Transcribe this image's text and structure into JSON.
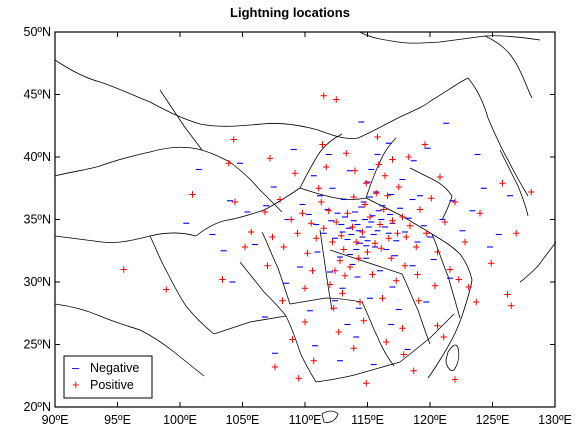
{
  "chart_data": {
    "type": "scatter",
    "title": "Lightning locations",
    "xlabel": "",
    "ylabel": "",
    "xlim": [
      90,
      130
    ],
    "ylim": [
      20,
      50
    ],
    "x_ticks": [
      {
        "value": 90,
        "label": "90ºE"
      },
      {
        "value": 95,
        "label": "95ºE"
      },
      {
        "value": 100,
        "label": "100ºE"
      },
      {
        "value": 105,
        "label": "105ºE"
      },
      {
        "value": 110,
        "label": "110ºE"
      },
      {
        "value": 115,
        "label": "115ºE"
      },
      {
        "value": 120,
        "label": "120ºE"
      },
      {
        "value": 125,
        "label": "125ºE"
      },
      {
        "value": 130,
        "label": "130ºE"
      }
    ],
    "y_ticks": [
      {
        "value": 20,
        "label": "20ºN"
      },
      {
        "value": 25,
        "label": "25ºN"
      },
      {
        "value": 30,
        "label": "30ºN"
      },
      {
        "value": 35,
        "label": "35ºN"
      },
      {
        "value": 40,
        "label": "40ºN"
      },
      {
        "value": 45,
        "label": "45ºN"
      },
      {
        "value": 50,
        "label": "50ºN"
      }
    ],
    "grid": false,
    "legend_position": "bottom-left",
    "series": [
      {
        "name": "Negative",
        "marker": "minus",
        "color": "#0000ff",
        "points": [
          [
            115.1,
            34.4
          ],
          [
            114.8,
            35.0
          ],
          [
            114.3,
            34.1
          ],
          [
            115.4,
            35.3
          ],
          [
            113.9,
            34.9
          ],
          [
            114.6,
            33.6
          ],
          [
            115.8,
            34.1
          ],
          [
            114.0,
            35.6
          ],
          [
            115.0,
            33.3
          ],
          [
            113.5,
            34.3
          ],
          [
            116.1,
            35.0
          ],
          [
            114.5,
            36.0
          ],
          [
            115.5,
            33.8
          ],
          [
            113.2,
            35.2
          ],
          [
            116.4,
            34.4
          ],
          [
            114.9,
            32.9
          ],
          [
            113.7,
            33.8
          ],
          [
            115.9,
            35.7
          ],
          [
            114.2,
            34.6
          ],
          [
            115.3,
            34.8
          ],
          [
            112.9,
            34.6
          ],
          [
            116.7,
            33.9
          ],
          [
            114.7,
            36.4
          ],
          [
            113.4,
            33.4
          ],
          [
            115.6,
            32.8
          ],
          [
            112.6,
            35.5
          ],
          [
            116.2,
            36.1
          ],
          [
            114.1,
            32.6
          ],
          [
            117.0,
            34.7
          ],
          [
            113.0,
            34.0
          ],
          [
            115.2,
            36.8
          ],
          [
            112.4,
            33.5
          ],
          [
            116.8,
            35.4
          ],
          [
            114.4,
            33.1
          ],
          [
            117.3,
            33.3
          ],
          [
            112.1,
            34.9
          ],
          [
            115.7,
            37.2
          ],
          [
            113.6,
            32.2
          ],
          [
            116.5,
            32.6
          ],
          [
            111.8,
            35.8
          ],
          [
            117.6,
            35.9
          ],
          [
            114.9,
            31.9
          ],
          [
            111.5,
            33.9
          ],
          [
            118.0,
            34.0
          ],
          [
            113.1,
            36.6
          ],
          [
            116.9,
            37.0
          ],
          [
            112.8,
            32.0
          ],
          [
            118.3,
            35.1
          ],
          [
            110.9,
            34.6
          ],
          [
            115.0,
            38.0
          ],
          [
            117.2,
            32.1
          ],
          [
            111.2,
            36.9
          ],
          [
            119.0,
            33.2
          ],
          [
            113.8,
            31.4
          ],
          [
            118.6,
            36.6
          ],
          [
            110.3,
            35.4
          ],
          [
            116.0,
            30.9
          ],
          [
            112.2,
            37.5
          ],
          [
            119.5,
            34.5
          ],
          [
            115.3,
            39.0
          ],
          [
            109.8,
            36.2
          ],
          [
            120.0,
            33.6
          ],
          [
            111.0,
            32.4
          ],
          [
            117.8,
            38.2
          ],
          [
            114.2,
            30.4
          ],
          [
            119.2,
            36.9
          ],
          [
            108.6,
            35.0
          ],
          [
            113.6,
            38.9
          ],
          [
            121.0,
            35.0
          ],
          [
            112.0,
            30.8
          ],
          [
            106.9,
            36.1
          ],
          [
            118.6,
            31.3
          ],
          [
            121.8,
            36.5
          ],
          [
            115.8,
            40.2
          ],
          [
            104.8,
            39.5
          ],
          [
            109.6,
            31.2
          ],
          [
            122.6,
            34.1
          ],
          [
            117.0,
            29.6
          ],
          [
            113.0,
            29.5
          ],
          [
            118.7,
            39.7
          ],
          [
            106.0,
            33.0
          ],
          [
            120.3,
            31.8
          ],
          [
            115.2,
            28.7
          ],
          [
            110.7,
            38.5
          ],
          [
            123.4,
            35.7
          ],
          [
            108.5,
            29.9
          ],
          [
            116.7,
            41.1
          ],
          [
            105.4,
            35.6
          ],
          [
            121.6,
            30.3
          ],
          [
            114.3,
            27.9
          ],
          [
            111.9,
            40.2
          ],
          [
            103.5,
            32.5
          ],
          [
            124.3,
            37.5
          ],
          [
            112.4,
            28.5
          ],
          [
            119.8,
            40.7
          ],
          [
            107.5,
            37.6
          ],
          [
            110.4,
            27.7
          ],
          [
            117.5,
            27.8
          ],
          [
            101.5,
            39.0
          ],
          [
            114.5,
            42.8
          ],
          [
            104.2,
            30.0
          ],
          [
            125.5,
            33.8
          ],
          [
            113.4,
            26.6
          ],
          [
            109.1,
            40.6
          ],
          [
            106.8,
            27.2
          ],
          [
            121.3,
            42.7
          ],
          [
            104.0,
            36.5
          ],
          [
            126.4,
            36.9
          ],
          [
            114.1,
            25.6
          ],
          [
            115.5,
            23.4
          ],
          [
            118.2,
            24.6
          ],
          [
            110.8,
            24.9
          ],
          [
            107.6,
            24.3
          ],
          [
            123.8,
            40.2
          ],
          [
            102.6,
            33.8
          ],
          [
            100.5,
            34.7
          ],
          [
            119.7,
            28.4
          ],
          [
            116.9,
            26.6
          ],
          [
            112.8,
            23.7
          ],
          [
            124.8,
            32.8
          ]
        ]
      },
      {
        "name": "Positive",
        "marker": "plus",
        "color": "#ff0000",
        "points": [
          [
            114.6,
            34.0
          ],
          [
            115.2,
            35.2
          ],
          [
            113.8,
            34.4
          ],
          [
            114.1,
            33.2
          ],
          [
            116.0,
            34.6
          ],
          [
            113.4,
            35.5
          ],
          [
            115.6,
            33.1
          ],
          [
            112.9,
            33.7
          ],
          [
            116.3,
            35.8
          ],
          [
            114.8,
            36.2
          ],
          [
            113.1,
            32.6
          ],
          [
            116.7,
            33.5
          ],
          [
            112.5,
            34.8
          ],
          [
            115.0,
            32.4
          ],
          [
            117.0,
            34.9
          ],
          [
            113.9,
            36.8
          ],
          [
            112.2,
            33.2
          ],
          [
            116.1,
            32.7
          ],
          [
            114.3,
            31.9
          ],
          [
            117.4,
            33.9
          ],
          [
            111.9,
            35.7
          ],
          [
            115.7,
            37.1
          ],
          [
            112.8,
            31.7
          ],
          [
            117.8,
            35.2
          ],
          [
            111.5,
            34.3
          ],
          [
            116.6,
            36.9
          ],
          [
            113.6,
            31.2
          ],
          [
            118.1,
            33.6
          ],
          [
            110.9,
            33.5
          ],
          [
            114.9,
            37.9
          ],
          [
            111.3,
            36.4
          ],
          [
            118.4,
            34.5
          ],
          [
            112.4,
            30.9
          ],
          [
            116.9,
            31.9
          ],
          [
            110.5,
            34.7
          ],
          [
            117.5,
            37.6
          ],
          [
            113.2,
            30.5
          ],
          [
            118.9,
            32.8
          ],
          [
            110.2,
            32.3
          ],
          [
            115.4,
            30.6
          ],
          [
            119.2,
            35.8
          ],
          [
            111.1,
            37.5
          ],
          [
            116.4,
            38.5
          ],
          [
            109.8,
            35.5
          ],
          [
            118.0,
            31.3
          ],
          [
            112.0,
            29.8
          ],
          [
            119.7,
            33.9
          ],
          [
            114.0,
            38.9
          ],
          [
            109.4,
            33.9
          ],
          [
            117.3,
            30.1
          ],
          [
            120.1,
            36.7
          ],
          [
            110.6,
            30.9
          ],
          [
            115.9,
            39.4
          ],
          [
            108.9,
            35.0
          ],
          [
            119.0,
            30.6
          ],
          [
            113.0,
            29.1
          ],
          [
            120.6,
            32.4
          ],
          [
            111.7,
            39.2
          ],
          [
            117.0,
            39.8
          ],
          [
            108.3,
            32.8
          ],
          [
            121.2,
            34.8
          ],
          [
            114.4,
            28.4
          ],
          [
            108.0,
            36.6
          ],
          [
            120.4,
            29.7
          ],
          [
            112.3,
            27.9
          ],
          [
            118.3,
            40.0
          ],
          [
            107.4,
            33.6
          ],
          [
            122.0,
            36.4
          ],
          [
            110.0,
            29.5
          ],
          [
            116.2,
            28.7
          ],
          [
            113.3,
            40.3
          ],
          [
            121.6,
            31.0
          ],
          [
            106.8,
            35.6
          ],
          [
            119.1,
            28.5
          ],
          [
            111.4,
            41.0
          ],
          [
            122.8,
            33.2
          ],
          [
            107.0,
            31.3
          ],
          [
            114.7,
            26.9
          ],
          [
            120.8,
            38.4
          ],
          [
            109.2,
            38.7
          ],
          [
            123.1,
            29.6
          ],
          [
            110.0,
            26.8
          ],
          [
            117.8,
            26.3
          ],
          [
            105.7,
            34.0
          ],
          [
            124.0,
            35.5
          ],
          [
            115.8,
            41.6
          ],
          [
            108.2,
            28.5
          ],
          [
            122.3,
            30.2
          ],
          [
            112.7,
            26.0
          ],
          [
            124.9,
            31.5
          ],
          [
            104.4,
            36.4
          ],
          [
            119.6,
            41.0
          ],
          [
            125.8,
            37.9
          ],
          [
            109.0,
            25.4
          ],
          [
            123.7,
            28.4
          ],
          [
            113.9,
            24.7
          ],
          [
            116.5,
            25.2
          ],
          [
            126.2,
            29.0
          ],
          [
            103.4,
            30.2
          ],
          [
            121.1,
            25.6
          ],
          [
            107.2,
            39.9
          ],
          [
            126.9,
            33.9
          ],
          [
            110.7,
            23.7
          ],
          [
            117.9,
            24.2
          ],
          [
            101.0,
            37.0
          ],
          [
            103.9,
            39.5
          ],
          [
            95.5,
            31.0
          ],
          [
            98.9,
            29.4
          ],
          [
            112.5,
            44.6
          ],
          [
            111.5,
            44.9
          ],
          [
            104.3,
            41.4
          ],
          [
            105.2,
            32.8
          ],
          [
            109.5,
            22.3
          ],
          [
            114.9,
            21.9
          ],
          [
            118.7,
            22.9
          ],
          [
            122.0,
            22.2
          ],
          [
            128.1,
            37.2
          ],
          [
            126.5,
            28.1
          ],
          [
            120.6,
            26.5
          ],
          [
            107.6,
            23.2
          ]
        ]
      }
    ],
    "legend": [
      {
        "label": "Negative",
        "symbol": "–",
        "color": "#0000ff"
      },
      {
        "label": "Positive",
        "symbol": "+",
        "color": "#ff0000"
      }
    ]
  }
}
